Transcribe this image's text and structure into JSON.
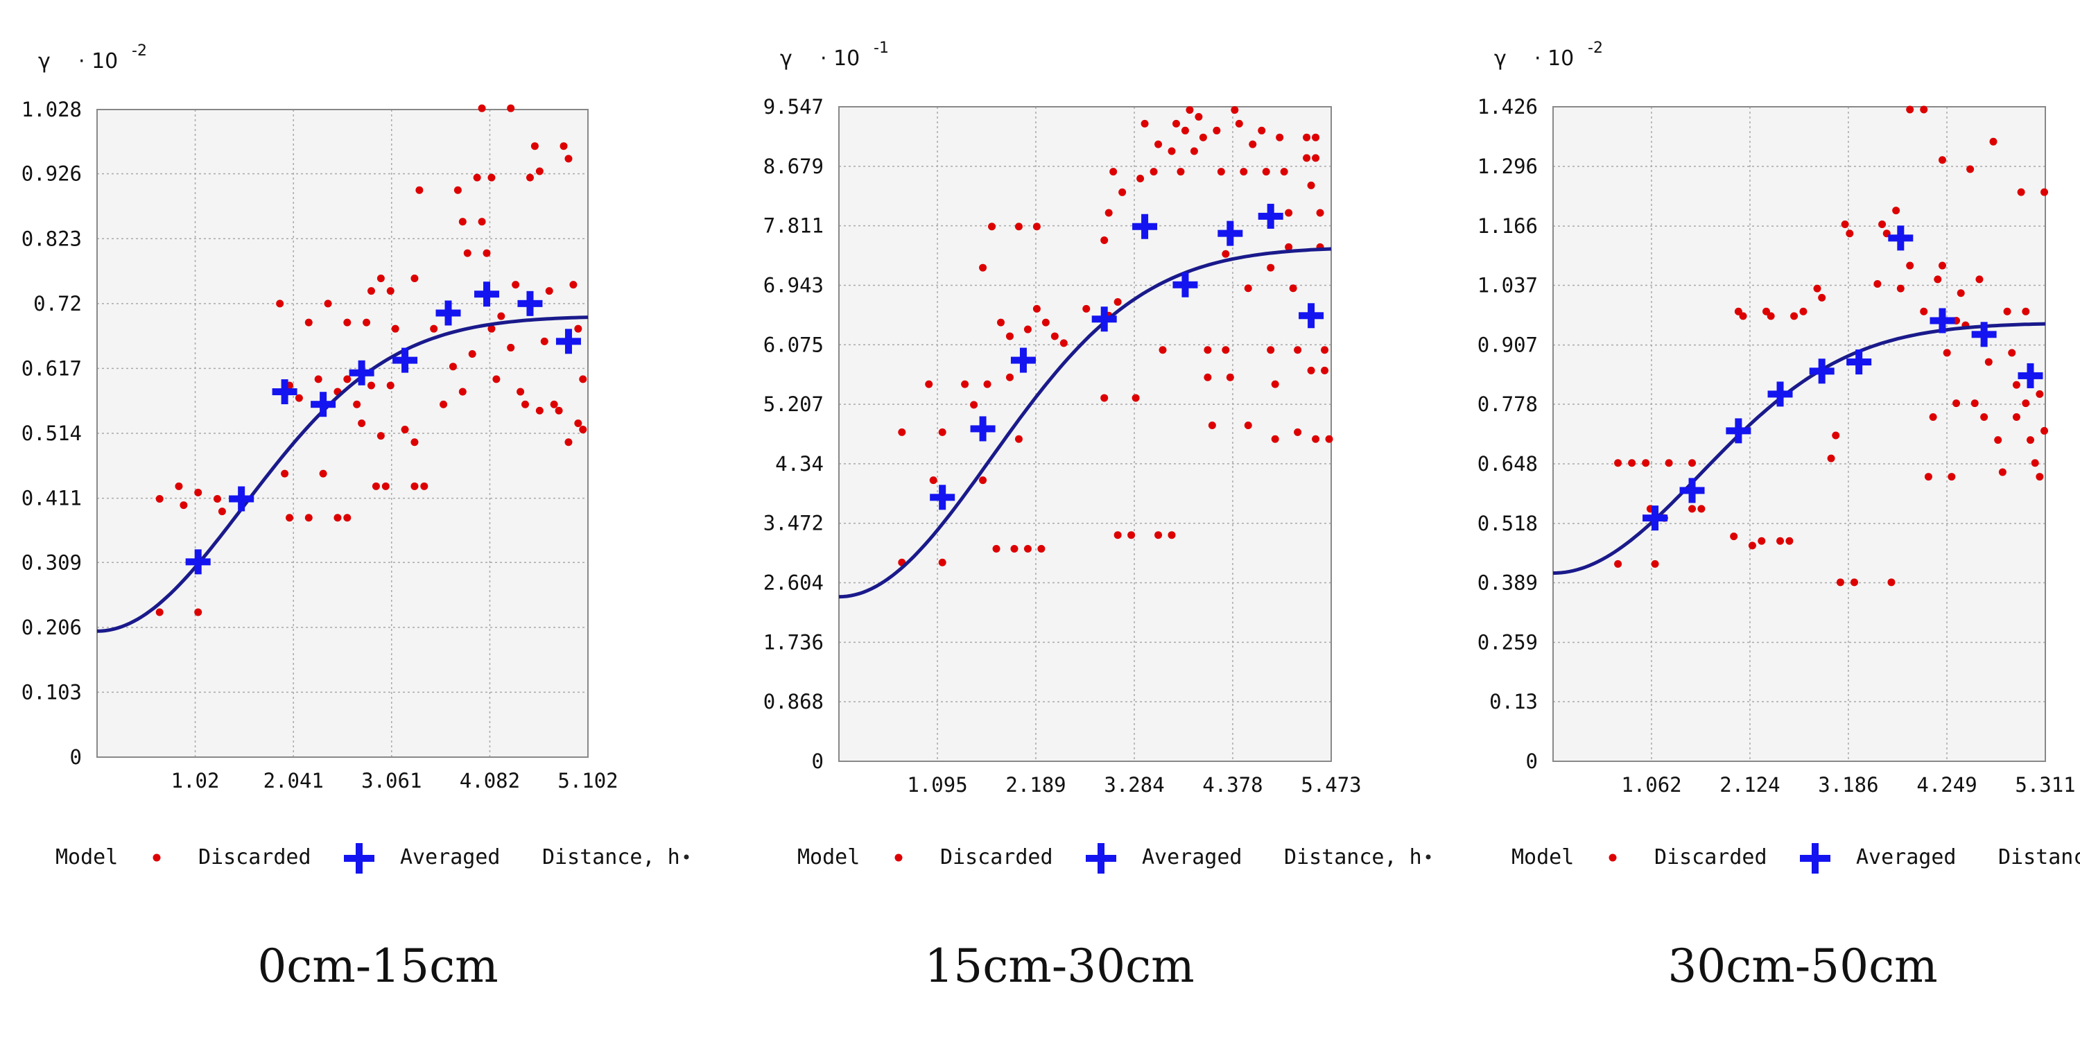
{
  "chart_data": [
    {
      "type": "scatter",
      "caption": "0cm-15cm",
      "y_axis_symbol": "γ",
      "y_scale_label": "· 10",
      "y_scale_exponent": "-2",
      "xlim": [
        0,
        5.102
      ],
      "ylim": [
        0,
        1.028
      ],
      "x_ticks": [
        "1.02",
        "2.041",
        "3.061",
        "4.082",
        "5.102"
      ],
      "x_tick_values": [
        1.02,
        2.041,
        3.061,
        4.082,
        5.102
      ],
      "y_ticks": [
        "0",
        "0.103",
        "0.206",
        "0.309",
        "0.411",
        "0.514",
        "0.617",
        "0.72",
        "0.823",
        "0.926",
        "1.028"
      ],
      "y_tick_values": [
        0,
        0.103,
        0.206,
        0.309,
        0.411,
        0.514,
        0.617,
        0.72,
        0.823,
        0.926,
        1.028
      ],
      "model": {
        "nugget": 0.2,
        "sill": 0.7,
        "range": 4.5
      },
      "averaged": [
        [
          1.05,
          0.31
        ],
        [
          1.5,
          0.41
        ],
        [
          1.95,
          0.58
        ],
        [
          2.35,
          0.56
        ],
        [
          2.75,
          0.61
        ],
        [
          3.2,
          0.63
        ],
        [
          3.65,
          0.705
        ],
        [
          4.05,
          0.735
        ],
        [
          4.5,
          0.72
        ],
        [
          4.9,
          0.66
        ]
      ],
      "discarded": [
        [
          0.65,
          0.41
        ],
        [
          0.85,
          0.43
        ],
        [
          0.9,
          0.4
        ],
        [
          1.05,
          0.42
        ],
        [
          1.25,
          0.41
        ],
        [
          1.3,
          0.39
        ],
        [
          0.65,
          0.23
        ],
        [
          1.05,
          0.23
        ],
        [
          1.9,
          0.72
        ],
        [
          1.95,
          0.58
        ],
        [
          2.0,
          0.59
        ],
        [
          2.1,
          0.57
        ],
        [
          2.2,
          0.69
        ],
        [
          2.3,
          0.6
        ],
        [
          2.4,
          0.72
        ],
        [
          2.5,
          0.58
        ],
        [
          2.6,
          0.69
        ],
        [
          2.7,
          0.56
        ],
        [
          2.6,
          0.6
        ],
        [
          1.95,
          0.45
        ],
        [
          2.35,
          0.45
        ],
        [
          2.0,
          0.38
        ],
        [
          2.2,
          0.38
        ],
        [
          2.5,
          0.38
        ],
        [
          2.6,
          0.38
        ],
        [
          2.8,
          0.69
        ],
        [
          2.85,
          0.74
        ],
        [
          2.95,
          0.76
        ],
        [
          3.05,
          0.74
        ],
        [
          3.1,
          0.68
        ],
        [
          2.75,
          0.53
        ],
        [
          2.85,
          0.59
        ],
        [
          2.95,
          0.51
        ],
        [
          3.05,
          0.59
        ],
        [
          3.2,
          0.52
        ],
        [
          3.3,
          0.5
        ],
        [
          2.9,
          0.43
        ],
        [
          3.0,
          0.43
        ],
        [
          3.3,
          0.43
        ],
        [
          3.4,
          0.43
        ],
        [
          3.3,
          0.76
        ],
        [
          3.35,
          0.9
        ],
        [
          3.5,
          0.68
        ],
        [
          3.6,
          0.56
        ],
        [
          3.7,
          0.62
        ],
        [
          3.75,
          0.9
        ],
        [
          3.8,
          0.85
        ],
        [
          3.85,
          0.8
        ],
        [
          3.95,
          0.92
        ],
        [
          4.0,
          0.85
        ],
        [
          4.05,
          0.8
        ],
        [
          4.1,
          0.68
        ],
        [
          4.15,
          0.6
        ],
        [
          3.8,
          0.58
        ],
        [
          3.9,
          0.64
        ],
        [
          4.0,
          1.03
        ],
        [
          4.3,
          1.03
        ],
        [
          4.1,
          0.92
        ],
        [
          4.2,
          0.7
        ],
        [
          4.3,
          0.65
        ],
        [
          4.35,
          0.75
        ],
        [
          4.4,
          0.58
        ],
        [
          4.5,
          0.92
        ],
        [
          4.55,
          0.97
        ],
        [
          4.6,
          0.93
        ],
        [
          4.65,
          0.66
        ],
        [
          4.7,
          0.74
        ],
        [
          4.8,
          0.55
        ],
        [
          4.85,
          0.97
        ],
        [
          4.9,
          0.95
        ],
        [
          4.95,
          0.75
        ],
        [
          5.0,
          0.68
        ],
        [
          5.05,
          0.6
        ],
        [
          5.0,
          0.53
        ],
        [
          4.9,
          0.5
        ],
        [
          5.05,
          0.52
        ],
        [
          4.75,
          0.56
        ],
        [
          4.6,
          0.55
        ],
        [
          4.45,
          0.56
        ]
      ]
    },
    {
      "type": "scatter",
      "caption": "15cm-30cm",
      "y_axis_symbol": "γ",
      "y_scale_label": "· 10",
      "y_scale_exponent": "-1",
      "xlim": [
        0,
        5.473
      ],
      "ylim": [
        0,
        9.547
      ],
      "x_ticks": [
        "1.095",
        "2.189",
        "3.284",
        "4.378",
        "5.473"
      ],
      "x_tick_values": [
        1.095,
        2.189,
        3.284,
        4.378,
        5.473
      ],
      "y_ticks": [
        "0",
        "0.868",
        "1.736",
        "2.604",
        "3.472",
        "4.34",
        "5.207",
        "6.075",
        "6.943",
        "7.811",
        "8.679",
        "9.547"
      ],
      "y_tick_values": [
        0,
        0.868,
        1.736,
        2.604,
        3.472,
        4.34,
        5.207,
        6.075,
        6.943,
        7.811,
        8.679,
        9.547
      ],
      "model": {
        "nugget": 2.4,
        "sill": 7.5,
        "range": 5.0
      },
      "averaged": [
        [
          1.15,
          3.85
        ],
        [
          1.6,
          4.85
        ],
        [
          2.05,
          5.85
        ],
        [
          2.95,
          6.45
        ],
        [
          3.4,
          7.8
        ],
        [
          3.85,
          6.95
        ],
        [
          4.35,
          7.7
        ],
        [
          4.8,
          7.95
        ],
        [
          5.25,
          6.5
        ]
      ],
      "discarded": [
        [
          0.7,
          4.8
        ],
        [
          0.7,
          2.9
        ],
        [
          1.0,
          5.5
        ],
        [
          1.05,
          4.1
        ],
        [
          1.15,
          2.9
        ],
        [
          1.15,
          4.8
        ],
        [
          1.4,
          5.5
        ],
        [
          1.6,
          4.1
        ],
        [
          1.5,
          5.2
        ],
        [
          1.65,
          5.5
        ],
        [
          1.6,
          7.2
        ],
        [
          1.7,
          7.8
        ],
        [
          1.8,
          6.4
        ],
        [
          1.9,
          6.2
        ],
        [
          2.0,
          7.8
        ],
        [
          2.1,
          6.3
        ],
        [
          2.2,
          7.8
        ],
        [
          1.9,
          5.6
        ],
        [
          2.0,
          4.7
        ],
        [
          2.2,
          6.6
        ],
        [
          2.3,
          6.4
        ],
        [
          2.4,
          6.2
        ],
        [
          2.5,
          6.1
        ],
        [
          1.75,
          3.1
        ],
        [
          1.95,
          3.1
        ],
        [
          2.1,
          3.1
        ],
        [
          2.25,
          3.1
        ],
        [
          2.75,
          6.6
        ],
        [
          2.95,
          5.3
        ],
        [
          3.0,
          6.5
        ],
        [
          3.1,
          6.7
        ],
        [
          3.05,
          8.6
        ],
        [
          3.0,
          8.0
        ],
        [
          3.15,
          8.3
        ],
        [
          2.95,
          7.6
        ],
        [
          3.1,
          3.3
        ],
        [
          3.25,
          3.3
        ],
        [
          3.3,
          5.3
        ],
        [
          3.4,
          9.3
        ],
        [
          3.35,
          8.5
        ],
        [
          3.5,
          8.6
        ],
        [
          3.55,
          9.0
        ],
        [
          3.6,
          6.0
        ],
        [
          3.7,
          8.9
        ],
        [
          3.75,
          9.3
        ],
        [
          3.8,
          8.6
        ],
        [
          3.85,
          9.2
        ],
        [
          3.9,
          9.5
        ],
        [
          3.95,
          8.9
        ],
        [
          3.55,
          3.3
        ],
        [
          3.7,
          3.3
        ],
        [
          4.0,
          9.4
        ],
        [
          4.05,
          9.1
        ],
        [
          4.1,
          6.0
        ],
        [
          4.1,
          5.6
        ],
        [
          4.15,
          4.9
        ],
        [
          4.2,
          9.2
        ],
        [
          4.25,
          8.6
        ],
        [
          4.3,
          7.4
        ],
        [
          4.3,
          6.0
        ],
        [
          4.35,
          5.6
        ],
        [
          4.4,
          9.5
        ],
        [
          4.45,
          9.3
        ],
        [
          4.5,
          8.6
        ],
        [
          4.55,
          6.9
        ],
        [
          4.55,
          4.9
        ],
        [
          4.6,
          9.0
        ],
        [
          4.7,
          9.2
        ],
        [
          4.75,
          8.6
        ],
        [
          4.8,
          7.2
        ],
        [
          4.8,
          6.0
        ],
        [
          4.85,
          5.5
        ],
        [
          4.85,
          4.7
        ],
        [
          4.9,
          9.1
        ],
        [
          4.95,
          8.6
        ],
        [
          5.0,
          8.0
        ],
        [
          5.0,
          7.5
        ],
        [
          5.05,
          6.9
        ],
        [
          5.1,
          6.0
        ],
        [
          5.1,
          4.8
        ],
        [
          5.2,
          9.1
        ],
        [
          5.2,
          8.8
        ],
        [
          5.25,
          8.4
        ],
        [
          5.3,
          9.1
        ],
        [
          5.35,
          8.0
        ],
        [
          5.35,
          7.5
        ],
        [
          5.4,
          5.7
        ],
        [
          5.4,
          6.0
        ],
        [
          5.45,
          4.7
        ],
        [
          5.3,
          4.7
        ],
        [
          5.25,
          5.7
        ],
        [
          5.3,
          8.8
        ]
      ]
    },
    {
      "type": "scatter",
      "caption": "30cm-50cm",
      "y_axis_symbol": "γ",
      "y_scale_label": "· 10",
      "y_scale_exponent": "-2",
      "xlim": [
        0,
        5.311
      ],
      "ylim": [
        0,
        1.426
      ],
      "x_ticks": [
        "1.062",
        "2.124",
        "3.186",
        "4.249",
        "5.311"
      ],
      "x_tick_values": [
        1.062,
        2.124,
        3.186,
        4.249,
        5.311
      ],
      "y_ticks": [
        "0",
        "0.13",
        "0.259",
        "0.389",
        "0.518",
        "0.648",
        "0.778",
        "0.907",
        "1.037",
        "1.166",
        "1.296",
        "1.426"
      ],
      "y_tick_values": [
        0,
        0.13,
        0.259,
        0.389,
        0.518,
        0.648,
        0.778,
        0.907,
        1.037,
        1.166,
        1.296,
        1.426
      ],
      "model": {
        "nugget": 0.41,
        "sill": 0.955,
        "range": 4.7
      },
      "averaged": [
        [
          1.1,
          0.53
        ],
        [
          1.5,
          0.59
        ],
        [
          2.0,
          0.72
        ],
        [
          2.45,
          0.8
        ],
        [
          2.9,
          0.85
        ],
        [
          3.3,
          0.87
        ],
        [
          3.75,
          1.14
        ],
        [
          4.2,
          0.96
        ],
        [
          4.65,
          0.93
        ],
        [
          5.15,
          0.84
        ]
      ],
      "discarded": [
        [
          0.7,
          0.43
        ],
        [
          0.7,
          0.65
        ],
        [
          0.85,
          0.65
        ],
        [
          1.0,
          0.65
        ],
        [
          1.05,
          0.55
        ],
        [
          1.1,
          0.43
        ],
        [
          1.2,
          0.53
        ],
        [
          1.25,
          0.65
        ],
        [
          1.5,
          0.65
        ],
        [
          1.5,
          0.55
        ],
        [
          1.6,
          0.55
        ],
        [
          1.95,
          0.49
        ],
        [
          2.0,
          0.98
        ],
        [
          2.05,
          0.97
        ],
        [
          2.15,
          0.47
        ],
        [
          2.25,
          0.48
        ],
        [
          2.3,
          0.98
        ],
        [
          2.35,
          0.97
        ],
        [
          2.45,
          0.48
        ],
        [
          2.55,
          0.48
        ],
        [
          2.6,
          0.97
        ],
        [
          2.7,
          0.98
        ],
        [
          2.85,
          1.03
        ],
        [
          2.9,
          1.01
        ],
        [
          3.0,
          0.66
        ],
        [
          3.05,
          0.71
        ],
        [
          3.1,
          0.39
        ],
        [
          3.15,
          1.17
        ],
        [
          3.2,
          1.15
        ],
        [
          3.25,
          0.39
        ],
        [
          3.5,
          1.04
        ],
        [
          3.55,
          1.17
        ],
        [
          3.6,
          1.15
        ],
        [
          3.65,
          0.39
        ],
        [
          3.7,
          1.2
        ],
        [
          3.75,
          1.03
        ],
        [
          3.85,
          1.08
        ],
        [
          3.85,
          1.42
        ],
        [
          4.0,
          0.98
        ],
        [
          4.0,
          1.42
        ],
        [
          4.05,
          0.62
        ],
        [
          4.1,
          0.75
        ],
        [
          4.15,
          1.05
        ],
        [
          4.2,
          1.31
        ],
        [
          4.2,
          1.08
        ],
        [
          4.25,
          0.89
        ],
        [
          4.3,
          0.62
        ],
        [
          4.35,
          0.78
        ],
        [
          4.4,
          1.02
        ],
        [
          4.45,
          0.95
        ],
        [
          4.5,
          1.29
        ],
        [
          4.55,
          0.78
        ],
        [
          4.6,
          1.05
        ],
        [
          4.7,
          0.87
        ],
        [
          4.75,
          1.35
        ],
        [
          4.8,
          0.7
        ],
        [
          4.85,
          0.63
        ],
        [
          4.9,
          0.98
        ],
        [
          4.95,
          0.89
        ],
        [
          5.0,
          0.75
        ],
        [
          5.05,
          1.24
        ],
        [
          5.1,
          0.98
        ],
        [
          5.15,
          0.7
        ],
        [
          5.2,
          0.65
        ],
        [
          5.25,
          0.8
        ],
        [
          5.3,
          1.24
        ],
        [
          5.25,
          0.62
        ],
        [
          5.1,
          0.78
        ],
        [
          4.65,
          0.75
        ],
        [
          4.35,
          0.96
        ],
        [
          5.0,
          0.82
        ],
        [
          5.3,
          0.72
        ]
      ]
    }
  ],
  "legend": {
    "model_label": "Model",
    "discarded_label": "Discarded",
    "averaged_label": "Averaged",
    "distance_label": "Distance, h"
  },
  "colors": {
    "model": "#1a1a8c",
    "discarded": "#dd0000",
    "averaged": "#1414f0",
    "plot_bg": "#f4f4f4",
    "grid": "#a8a8a8",
    "frame": "#888888"
  }
}
